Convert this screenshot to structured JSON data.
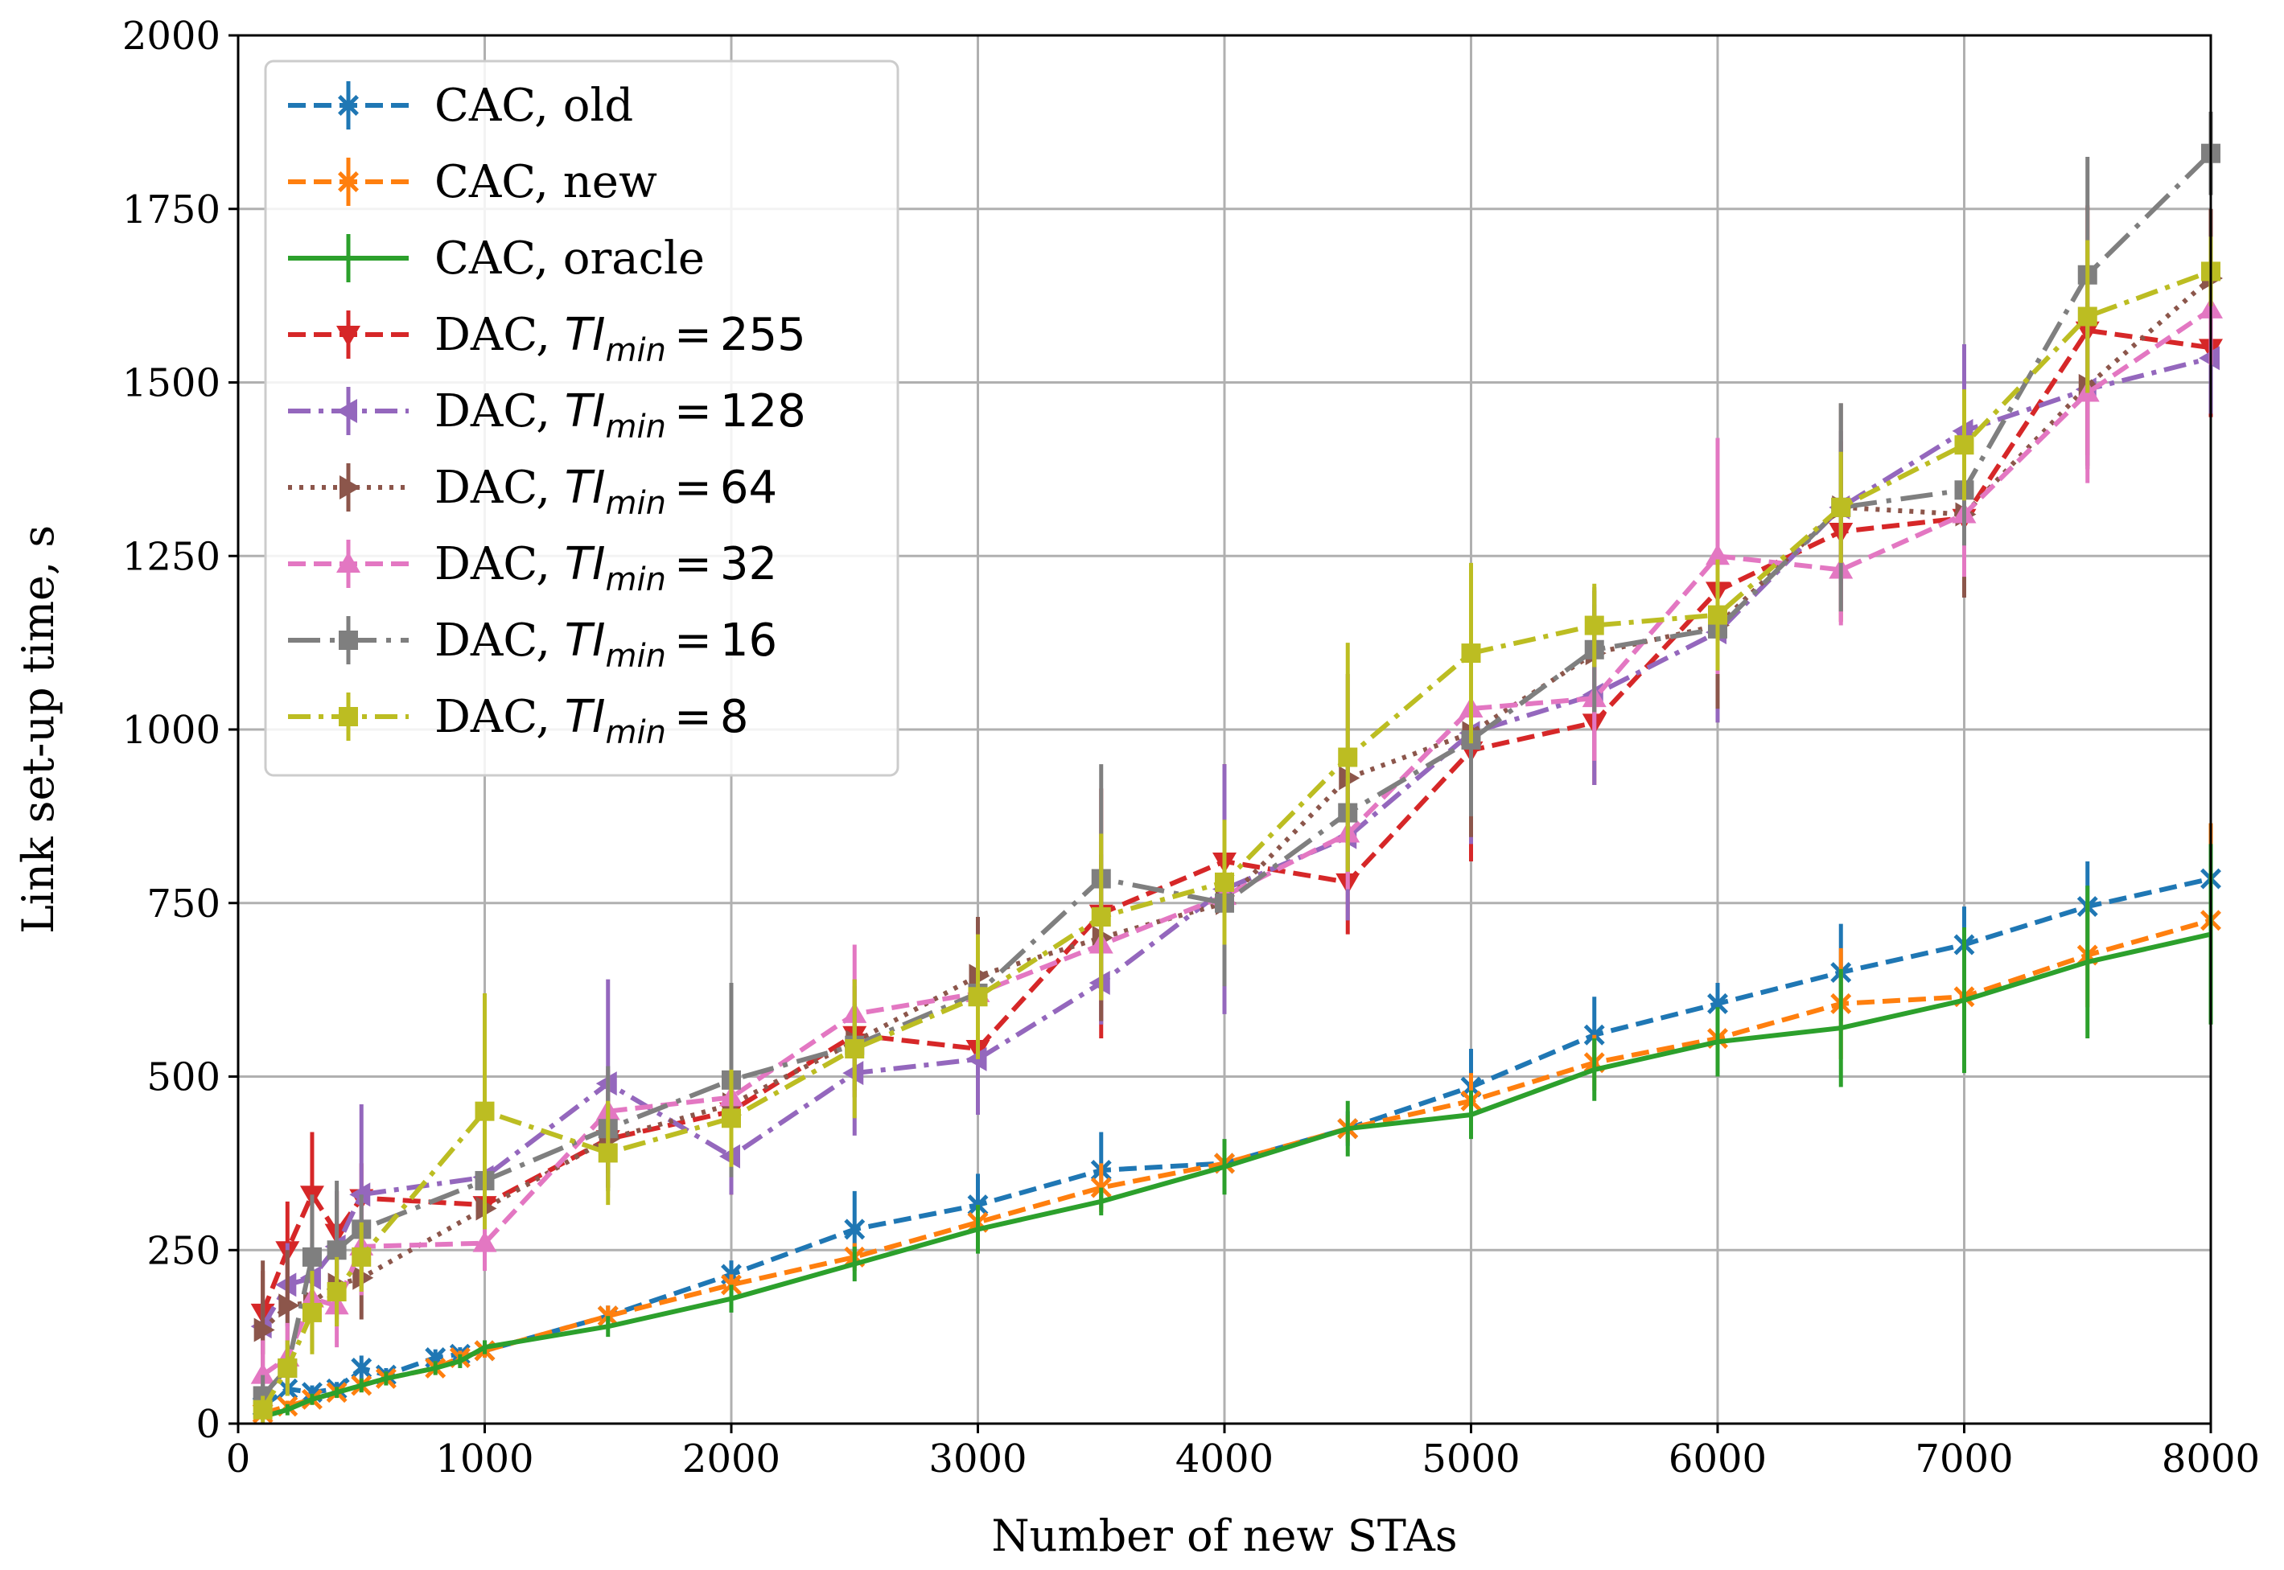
{
  "chart_data": {
    "type": "line",
    "title": "",
    "xlabel": "Number of new STAs",
    "ylabel": "Link set-up time, s",
    "xlim": [
      0,
      8000
    ],
    "ylim": [
      0,
      2000
    ],
    "xticks": [
      0,
      1000,
      2000,
      3000,
      4000,
      5000,
      6000,
      7000,
      8000
    ],
    "yticks": [
      0,
      250,
      500,
      750,
      1000,
      1250,
      1500,
      1750,
      2000
    ],
    "grid": true,
    "legend_position": "top-left",
    "series": [
      {
        "name": "CAC, old",
        "label_prefix": "CAC, old",
        "label_var": "",
        "label_val": "",
        "color": "#1f77b4",
        "dash": "dashed",
        "marker": "x",
        "x": [
          100,
          200,
          300,
          400,
          500,
          600,
          800,
          900,
          1000,
          1500,
          2000,
          2500,
          3000,
          3500,
          4000,
          4500,
          5000,
          5500,
          6000,
          6500,
          7000,
          7500,
          8000
        ],
        "y": [
          25,
          50,
          45,
          50,
          80,
          70,
          95,
          100,
          105,
          155,
          215,
          280,
          315,
          365,
          375,
          425,
          485,
          560,
          605,
          650,
          690,
          745,
          785
        ],
        "err": [
          8,
          10,
          10,
          10,
          18,
          10,
          12,
          10,
          10,
          15,
          20,
          55,
          45,
          55,
          20,
          25,
          55,
          55,
          30,
          70,
          55,
          65,
          75
        ]
      },
      {
        "name": "CAC, new",
        "label_prefix": "CAC, new",
        "label_var": "",
        "label_val": "",
        "color": "#ff7f0e",
        "dash": "dashed",
        "marker": "x",
        "x": [
          100,
          200,
          300,
          400,
          500,
          600,
          800,
          900,
          1000,
          1500,
          2000,
          2500,
          3000,
          3500,
          4000,
          4500,
          5000,
          5500,
          6000,
          6500,
          7000,
          7500,
          8000
        ],
        "y": [
          15,
          25,
          35,
          45,
          55,
          65,
          80,
          95,
          105,
          155,
          200,
          240,
          290,
          340,
          375,
          425,
          465,
          520,
          555,
          605,
          615,
          675,
          725
        ],
        "err": [
          8,
          8,
          8,
          8,
          10,
          10,
          10,
          10,
          10,
          15,
          15,
          20,
          25,
          35,
          20,
          20,
          40,
          40,
          35,
          80,
          100,
          75,
          140
        ]
      },
      {
        "name": "CAC, oracle",
        "label_prefix": "CAC, oracle",
        "label_var": "",
        "label_val": "",
        "color": "#2ca02c",
        "dash": "solid",
        "marker": "none",
        "x": [
          100,
          200,
          300,
          400,
          500,
          600,
          800,
          900,
          1000,
          1500,
          2000,
          2500,
          3000,
          3500,
          4000,
          4500,
          5000,
          5500,
          6000,
          6500,
          7000,
          7500,
          8000
        ],
        "y": [
          10,
          20,
          35,
          45,
          55,
          65,
          80,
          90,
          110,
          140,
          180,
          230,
          280,
          320,
          370,
          425,
          445,
          510,
          550,
          570,
          610,
          665,
          705
        ],
        "err": [
          5,
          8,
          8,
          8,
          10,
          10,
          10,
          10,
          10,
          15,
          20,
          25,
          35,
          20,
          40,
          40,
          35,
          45,
          50,
          85,
          105,
          110,
          130
        ]
      },
      {
        "name": "DAC, TI_min = 255",
        "label_prefix": "DAC, ",
        "label_var": "TI",
        "label_sub": "min",
        "label_val": "255",
        "color": "#d62728",
        "dash": "dashed",
        "marker": "tri-down",
        "x": [
          100,
          200,
          300,
          400,
          500,
          1000,
          1500,
          2000,
          2500,
          3000,
          3500,
          4000,
          4500,
          5000,
          5500,
          6000,
          6500,
          7000,
          7500,
          8000
        ],
        "y": [
          160,
          250,
          330,
          275,
          325,
          315,
          410,
          450,
          560,
          540,
          735,
          810,
          780,
          970,
          1010,
          1200,
          1285,
          1305,
          1575,
          1550
        ],
        "err": [
          60,
          70,
          90,
          60,
          50,
          60,
          50,
          120,
          80,
          90,
          180,
          140,
          75,
          160,
          90,
          100,
          130,
          110,
          180,
          100
        ]
      },
      {
        "name": "DAC, TI_min = 128",
        "label_prefix": "DAC, ",
        "label_var": "TI",
        "label_sub": "min",
        "label_val": "128",
        "color": "#9467bd",
        "dash": "dashdot",
        "marker": "tri-left",
        "x": [
          100,
          200,
          300,
          400,
          500,
          1000,
          1500,
          2000,
          2500,
          3000,
          3500,
          4000,
          4500,
          5000,
          5500,
          6000,
          6500,
          7000,
          7500,
          8000
        ],
        "y": [
          140,
          200,
          210,
          255,
          330,
          355,
          490,
          385,
          505,
          525,
          635,
          770,
          845,
          995,
          1050,
          1140,
          1320,
          1430,
          1490,
          1535
        ],
        "err": [
          40,
          60,
          50,
          80,
          130,
          40,
          150,
          55,
          90,
          80,
          60,
          180,
          120,
          160,
          130,
          130,
          110,
          125,
          110,
          80
        ]
      },
      {
        "name": "DAC, TI_min = 64",
        "label_prefix": "DAC, ",
        "label_var": "TI",
        "label_sub": "min",
        "label_val": "64",
        "color": "#8c564b",
        "dash": "dotted",
        "marker": "tri-right",
        "x": [
          100,
          200,
          300,
          400,
          500,
          1000,
          1500,
          2000,
          2500,
          3000,
          3500,
          4000,
          4500,
          5000,
          5500,
          6000,
          6500,
          7000,
          7500,
          8000
        ],
        "y": [
          135,
          170,
          175,
          200,
          210,
          310,
          410,
          460,
          550,
          645,
          700,
          750,
          930,
          995,
          1110,
          1150,
          1320,
          1310,
          1495,
          1650
        ],
        "err": [
          100,
          80,
          70,
          60,
          60,
          60,
          70,
          60,
          80,
          85,
          120,
          110,
          150,
          150,
          90,
          120,
          150,
          120,
          120,
          100
        ]
      },
      {
        "name": "DAC, TI_min = 32",
        "label_prefix": "DAC, ",
        "label_var": "TI",
        "label_sub": "min",
        "label_val": "32",
        "color": "#e377c2",
        "dash": "dashed",
        "marker": "tri-up",
        "x": [
          100,
          200,
          300,
          400,
          500,
          1000,
          1500,
          2000,
          2500,
          3000,
          3500,
          4000,
          4500,
          5000,
          5500,
          6000,
          6500,
          7000,
          7500,
          8000
        ],
        "y": [
          70,
          95,
          180,
          170,
          255,
          260,
          450,
          470,
          590,
          620,
          690,
          760,
          850,
          1030,
          1045,
          1250,
          1230,
          1310,
          1485,
          1605
        ],
        "err": [
          50,
          50,
          60,
          60,
          70,
          40,
          60,
          60,
          100,
          80,
          80,
          70,
          80,
          120,
          90,
          170,
          80,
          90,
          130,
          80
        ]
      },
      {
        "name": "DAC, TI_min = 16",
        "label_prefix": "DAC, ",
        "label_var": "TI",
        "label_sub": "min",
        "label_val": "16",
        "color": "#7f7f7f",
        "dash": "dashdot-long",
        "marker": "square",
        "x": [
          100,
          200,
          300,
          400,
          500,
          1000,
          1500,
          2000,
          2500,
          3000,
          3500,
          4000,
          4500,
          5000,
          5500,
          6000,
          6500,
          7000,
          7500,
          8000
        ],
        "y": [
          40,
          80,
          240,
          250,
          280,
          350,
          425,
          495,
          545,
          620,
          785,
          750,
          880,
          985,
          1115,
          1145,
          1320,
          1345,
          1655,
          1830
        ],
        "err": [
          30,
          40,
          90,
          100,
          50,
          60,
          90,
          140,
          60,
          80,
          165,
          120,
          80,
          110,
          90,
          60,
          150,
          80,
          170,
          60
        ]
      },
      {
        "name": "DAC, TI_min = 8",
        "label_prefix": "DAC, ",
        "label_var": "TI",
        "label_sub": "min",
        "label_val": "8",
        "color": "#bcbd22",
        "dash": "dashdot",
        "marker": "square",
        "x": [
          100,
          200,
          300,
          400,
          500,
          1000,
          1500,
          2000,
          2500,
          3000,
          3500,
          4000,
          4500,
          5000,
          5500,
          6000,
          6500,
          7000,
          7500,
          8000
        ],
        "y": [
          20,
          80,
          160,
          190,
          240,
          450,
          390,
          440,
          540,
          615,
          730,
          780,
          960,
          1110,
          1150,
          1165,
          1320,
          1410,
          1595,
          1660
        ],
        "err": [
          20,
          40,
          60,
          50,
          50,
          170,
          75,
          70,
          100,
          90,
          120,
          90,
          165,
          130,
          60,
          80,
          80,
          80,
          110,
          50
        ]
      }
    ]
  }
}
